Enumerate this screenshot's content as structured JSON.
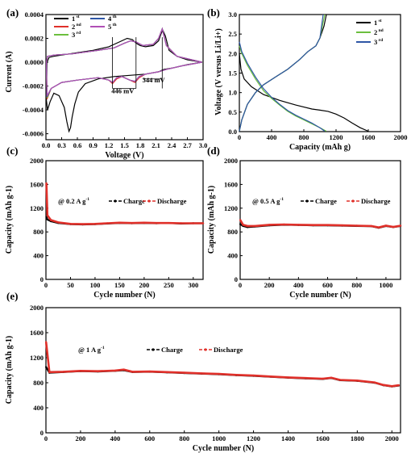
{
  "chart_data": [
    {
      "panel": "(a)",
      "type": "line",
      "xlabel": "Voltage (V)",
      "ylabel": "Current (A)",
      "xlim": [
        0.0,
        3.0
      ],
      "ylim": [
        -0.00065,
        0.0004
      ],
      "xticks": [
        "0.0",
        "0.3",
        "0.6",
        "0.9",
        "1.2",
        "1.5",
        "1.8",
        "2.1",
        "2.4",
        "2.7",
        "3.0"
      ],
      "yticks": [
        "-0.0006",
        "-0.0004",
        "-0.0002",
        "0.0000",
        "0.0002",
        "0.0004"
      ],
      "annotations": [
        "446 mV",
        "344 mV"
      ],
      "legend": [
        {
          "name": "1",
          "sup": "st",
          "color": "#000000"
        },
        {
          "name": "2",
          "sup": "nd",
          "color": "#e0302a"
        },
        {
          "name": "3",
          "sup": "rd",
          "color": "#6cbf3e"
        },
        {
          "name": "4",
          "sup": "th",
          "color": "#2e56a6"
        },
        {
          "name": "5",
          "sup": "th",
          "color": "#b04fb5"
        }
      ],
      "series": [
        {
          "name": "1st",
          "x": [
            2.98,
            2.7,
            2.4,
            2.25,
            2.15,
            1.9,
            1.6,
            1.3,
            1.0,
            0.75,
            0.62,
            0.55,
            0.5,
            0.47,
            0.44,
            0.4,
            0.35,
            0.25,
            0.15,
            0.08,
            0.03,
            0.01,
            0.02,
            0.06,
            0.15,
            0.3,
            0.6,
            0.9,
            1.2,
            1.4,
            1.55,
            1.65,
            1.72,
            1.8,
            1.9,
            2.05,
            2.15,
            2.2,
            2.23,
            2.28,
            2.35,
            2.5,
            2.7,
            2.98
          ],
          "y": [
            0.0,
            -2e-05,
            -5e-05,
            -6e-05,
            -8e-05,
            -0.0001,
            -0.00011,
            -0.00012,
            -0.00014,
            -0.00018,
            -0.00025,
            -0.00035,
            -0.00046,
            -0.00055,
            -0.00058,
            -0.0005,
            -0.00038,
            -0.00028,
            -0.00026,
            -0.00033,
            -0.0004,
            -0.00032,
            0.0,
            4e-05,
            5e-05,
            6e-05,
            8e-05,
            0.0001,
            0.00013,
            0.00017,
            0.0002,
            0.00019,
            0.00016,
            0.00014,
            0.00013,
            0.00014,
            0.00018,
            0.00024,
            0.00027,
            0.00022,
            0.0001,
            5e-05,
            2e-05,
            0.0
          ]
        },
        {
          "name": "2nd",
          "x": [
            2.98,
            2.6,
            2.3,
            2.15,
            1.9,
            1.78,
            1.7,
            1.6,
            1.45,
            1.35,
            1.27,
            1.2,
            1.0,
            0.6,
            0.3,
            0.1,
            0.02,
            0.01,
            0.03,
            0.15,
            0.5,
            1.0,
            1.3,
            1.5,
            1.62,
            1.72,
            1.85,
            2.05,
            2.15,
            2.22,
            2.3,
            2.5,
            2.98
          ],
          "y": [
            0.0,
            -3e-05,
            -6e-05,
            -8e-05,
            -0.0001,
            -0.00013,
            -0.00017,
            -0.00015,
            -0.00012,
            -0.00014,
            -0.00018,
            -0.00015,
            -0.00013,
            -0.00015,
            -0.00017,
            -0.00022,
            -0.00031,
            0.0,
            5e-05,
            6e-05,
            7e-05,
            0.0001,
            0.00012,
            0.00016,
            0.00018,
            0.00017,
            0.00014,
            0.00015,
            0.0002,
            0.00028,
            0.00014,
            5e-05,
            0.0
          ]
        },
        {
          "name": "3rd",
          "x": [
            2.98,
            2.6,
            2.3,
            2.15,
            1.9,
            1.78,
            1.7,
            1.6,
            1.45,
            1.35,
            1.27,
            1.2,
            1.0,
            0.6,
            0.3,
            0.1,
            0.02,
            0.01,
            0.03,
            0.15,
            0.5,
            1.0,
            1.3,
            1.5,
            1.62,
            1.72,
            1.85,
            2.05,
            2.15,
            2.22,
            2.3,
            2.5,
            2.98
          ],
          "y": [
            0.0,
            -3e-05,
            -6e-05,
            -8e-05,
            -0.0001,
            -0.00012,
            -0.00016,
            -0.00015,
            -0.00012,
            -0.00013,
            -0.00017,
            -0.00015,
            -0.00013,
            -0.00015,
            -0.00017,
            -0.00022,
            -0.0003,
            0.0,
            5e-05,
            6e-05,
            7e-05,
            0.0001,
            0.00012,
            0.00016,
            0.00018,
            0.00017,
            0.00014,
            0.00015,
            0.0002,
            0.00028,
            0.00014,
            5e-05,
            0.0
          ]
        },
        {
          "name": "4th",
          "x": [
            2.98,
            2.6,
            2.3,
            2.15,
            1.9,
            1.78,
            1.7,
            1.6,
            1.45,
            1.35,
            1.27,
            1.2,
            1.0,
            0.6,
            0.3,
            0.1,
            0.02,
            0.01,
            0.03,
            0.15,
            0.5,
            1.0,
            1.3,
            1.5,
            1.62,
            1.72,
            1.85,
            2.05,
            2.15,
            2.22,
            2.3,
            2.5,
            2.98
          ],
          "y": [
            0.0,
            -3e-05,
            -6e-05,
            -8e-05,
            -0.0001,
            -0.00012,
            -0.00016,
            -0.00015,
            -0.00012,
            -0.00013,
            -0.00017,
            -0.00015,
            -0.00013,
            -0.00015,
            -0.00017,
            -0.00022,
            -0.00029,
            0.0,
            5e-05,
            6e-05,
            7e-05,
            0.0001,
            0.00012,
            0.00016,
            0.00018,
            0.00017,
            0.00014,
            0.00015,
            0.0002,
            0.00028,
            0.00014,
            5e-05,
            0.0
          ]
        },
        {
          "name": "5th",
          "x": [
            2.98,
            2.6,
            2.3,
            2.15,
            1.9,
            1.78,
            1.7,
            1.6,
            1.45,
            1.35,
            1.27,
            1.2,
            1.0,
            0.6,
            0.3,
            0.1,
            0.02,
            0.01,
            0.03,
            0.15,
            0.5,
            1.0,
            1.3,
            1.5,
            1.62,
            1.72,
            1.85,
            2.05,
            2.15,
            2.22,
            2.3,
            2.5,
            2.98
          ],
          "y": [
            0.0,
            -3e-05,
            -6e-05,
            -8e-05,
            -0.0001,
            -0.00012,
            -0.00016,
            -0.00015,
            -0.00012,
            -0.00013,
            -0.00017,
            -0.00015,
            -0.00013,
            -0.00015,
            -0.00017,
            -0.00022,
            -0.00028,
            0.0,
            5e-05,
            6e-05,
            7e-05,
            0.0001,
            0.00012,
            0.00016,
            0.00018,
            0.00017,
            0.00014,
            0.00015,
            0.0002,
            0.00028,
            0.00014,
            5e-05,
            0.0
          ]
        }
      ]
    },
    {
      "panel": "(b)",
      "type": "line",
      "xlabel": "Capacity (mAh g-1)",
      "ylabel": "Voltage (V versus Li/Li+)",
      "xlim": [
        0,
        2000
      ],
      "ylim": [
        0.0,
        3.0
      ],
      "xticks": [
        "0",
        "400",
        "800",
        "1200",
        "1600",
        "2000"
      ],
      "yticks": [
        "0.0",
        "0.5",
        "1.0",
        "1.5",
        "2.0",
        "2.5",
        "3.0"
      ],
      "legend": [
        {
          "name": "1",
          "sup": "st",
          "color": "#000000"
        },
        {
          "name": "2",
          "sup": "nd",
          "color": "#6cbf3e"
        },
        {
          "name": "3",
          "sup": "rd",
          "color": "#2e56a6"
        }
      ],
      "series": [
        {
          "name": "1st discharge",
          "x": [
            0,
            20,
            60,
            150,
            300,
            500,
            700,
            900,
            1000,
            1100,
            1200,
            1300,
            1400,
            1500,
            1600
          ],
          "y": [
            2.0,
            1.6,
            1.35,
            1.15,
            0.95,
            0.8,
            0.68,
            0.58,
            0.55,
            0.52,
            0.45,
            0.35,
            0.22,
            0.1,
            0.01
          ]
        },
        {
          "name": "1st charge",
          "x": [
            0,
            30,
            100,
            200,
            300,
            450,
            600,
            750,
            850,
            950,
            1000,
            1050,
            1080
          ],
          "y": [
            0.01,
            0.3,
            0.7,
            1.0,
            1.2,
            1.4,
            1.6,
            1.85,
            2.05,
            2.2,
            2.4,
            2.7,
            3.0
          ]
        },
        {
          "name": "2nd discharge",
          "x": [
            0,
            30,
            100,
            200,
            300,
            400,
            500,
            600,
            700,
            800,
            900,
            1000,
            1080
          ],
          "y": [
            2.2,
            2.0,
            1.7,
            1.35,
            1.05,
            0.85,
            0.68,
            0.52,
            0.4,
            0.3,
            0.2,
            0.1,
            0.01
          ]
        },
        {
          "name": "2nd charge",
          "x": [
            0,
            30,
            100,
            200,
            300,
            450,
            600,
            750,
            850,
            950,
            1000,
            1030,
            1060
          ],
          "y": [
            0.01,
            0.3,
            0.7,
            1.0,
            1.2,
            1.4,
            1.6,
            1.85,
            2.05,
            2.2,
            2.4,
            2.7,
            3.0
          ]
        },
        {
          "name": "3rd discharge",
          "x": [
            0,
            30,
            100,
            200,
            300,
            400,
            500,
            600,
            700,
            800,
            900,
            1000,
            1060
          ],
          "y": [
            2.3,
            2.05,
            1.75,
            1.4,
            1.1,
            0.88,
            0.7,
            0.54,
            0.42,
            0.32,
            0.22,
            0.1,
            0.01
          ]
        },
        {
          "name": "3rd charge",
          "x": [
            0,
            30,
            100,
            200,
            300,
            450,
            600,
            750,
            850,
            950,
            1000,
            1020,
            1040
          ],
          "y": [
            0.01,
            0.3,
            0.7,
            1.0,
            1.2,
            1.4,
            1.6,
            1.85,
            2.05,
            2.2,
            2.4,
            2.7,
            3.0
          ]
        }
      ]
    },
    {
      "panel": "(c)",
      "type": "scatter",
      "xlabel": "Cycle number (N)",
      "ylabel": "Capacity (mAh g-1)",
      "xlim": [
        0,
        320
      ],
      "ylim": [
        0,
        2000
      ],
      "xticks": [
        "0",
        "50",
        "100",
        "150",
        "200",
        "250",
        "300"
      ],
      "yticks": [
        "0",
        "400",
        "800",
        "1200",
        "1600",
        "2000"
      ],
      "rate_label": "@ 0.2 A g",
      "rate_sup": "-1",
      "legend": [
        {
          "name": "Charge",
          "color": "#000000"
        },
        {
          "name": "Discharge",
          "color": "#e0302a"
        }
      ],
      "series": [
        {
          "name": "Charge",
          "x": [
            1,
            3,
            10,
            25,
            50,
            75,
            100,
            125,
            150,
            175,
            200,
            225,
            250,
            275,
            300,
            320
          ],
          "y": [
            1050,
            1010,
            980,
            950,
            930,
            925,
            930,
            940,
            950,
            945,
            950,
            945,
            950,
            940,
            945,
            945
          ]
        },
        {
          "name": "Discharge",
          "x": [
            1,
            3,
            10,
            25,
            50,
            75,
            100,
            125,
            150,
            175,
            200,
            225,
            250,
            275,
            300,
            320
          ],
          "y": [
            1620,
            1080,
            1000,
            960,
            935,
            930,
            935,
            945,
            955,
            950,
            955,
            950,
            950,
            945,
            945,
            945
          ]
        }
      ]
    },
    {
      "panel": "(d)",
      "type": "scatter",
      "xlabel": "Cycle number (N)",
      "ylabel": "Capacity (mAh g-1)",
      "xlim": [
        0,
        1100
      ],
      "ylim": [
        0,
        2000
      ],
      "xticks": [
        "0",
        "200",
        "400",
        "600",
        "800",
        "1000"
      ],
      "yticks": [
        "0",
        "400",
        "800",
        "1200",
        "1600",
        "2000"
      ],
      "rate_label": "@ 0.5 A g",
      "rate_sup": "-1",
      "legend": [
        {
          "name": "Charge",
          "color": "#000000"
        },
        {
          "name": "Discharge",
          "color": "#e0302a"
        }
      ],
      "series": [
        {
          "name": "Charge",
          "x": [
            1,
            20,
            50,
            100,
            200,
            300,
            400,
            500,
            600,
            700,
            800,
            900,
            950,
            1000,
            1050,
            1100
          ],
          "y": [
            930,
            900,
            880,
            890,
            910,
            920,
            915,
            910,
            910,
            905,
            900,
            895,
            870,
            900,
            880,
            900
          ]
        },
        {
          "name": "Discharge",
          "x": [
            1,
            20,
            50,
            100,
            200,
            300,
            400,
            500,
            600,
            700,
            800,
            900,
            950,
            1000,
            1050,
            1100
          ],
          "y": [
            1000,
            920,
            900,
            900,
            920,
            925,
            920,
            915,
            915,
            910,
            905,
            900,
            875,
            905,
            885,
            905
          ]
        }
      ]
    },
    {
      "panel": "(e)",
      "type": "scatter",
      "xlabel": "Cycle number (N)",
      "ylabel": "Capacity (mAh g-1)",
      "xlim": [
        0,
        2050
      ],
      "ylim": [
        0,
        2000
      ],
      "xticks": [
        "0",
        "200",
        "400",
        "600",
        "800",
        "1000",
        "1200",
        "1400",
        "1600",
        "1800",
        "2000"
      ],
      "yticks": [
        "0",
        "400",
        "800",
        "1200",
        "1600",
        "2000"
      ],
      "rate_label": "@ 1 A g",
      "rate_sup": "-1",
      "legend": [
        {
          "name": "Charge",
          "color": "#000000"
        },
        {
          "name": "Discharge",
          "color": "#e0302a"
        }
      ],
      "series": [
        {
          "name": "Charge",
          "x": [
            1,
            20,
            100,
            200,
            300,
            400,
            450,
            500,
            600,
            700,
            800,
            900,
            1000,
            1100,
            1200,
            1300,
            1400,
            1500,
            1600,
            1650,
            1700,
            1800,
            1900,
            1950,
            2000,
            2040
          ],
          "y": [
            1050,
            960,
            970,
            985,
            980,
            990,
            1000,
            970,
            975,
            965,
            955,
            945,
            935,
            920,
            910,
            895,
            880,
            870,
            860,
            875,
            840,
            830,
            800,
            760,
            740,
            755
          ]
        },
        {
          "name": "Discharge",
          "x": [
            1,
            20,
            100,
            200,
            300,
            400,
            450,
            500,
            600,
            700,
            800,
            900,
            1000,
            1100,
            1200,
            1300,
            1400,
            1500,
            1600,
            1650,
            1700,
            1800,
            1900,
            1950,
            2000,
            2040
          ],
          "y": [
            1450,
            970,
            975,
            990,
            985,
            995,
            1010,
            975,
            980,
            970,
            960,
            950,
            940,
            925,
            915,
            900,
            885,
            875,
            865,
            880,
            845,
            835,
            805,
            765,
            745,
            760
          ]
        }
      ]
    }
  ]
}
